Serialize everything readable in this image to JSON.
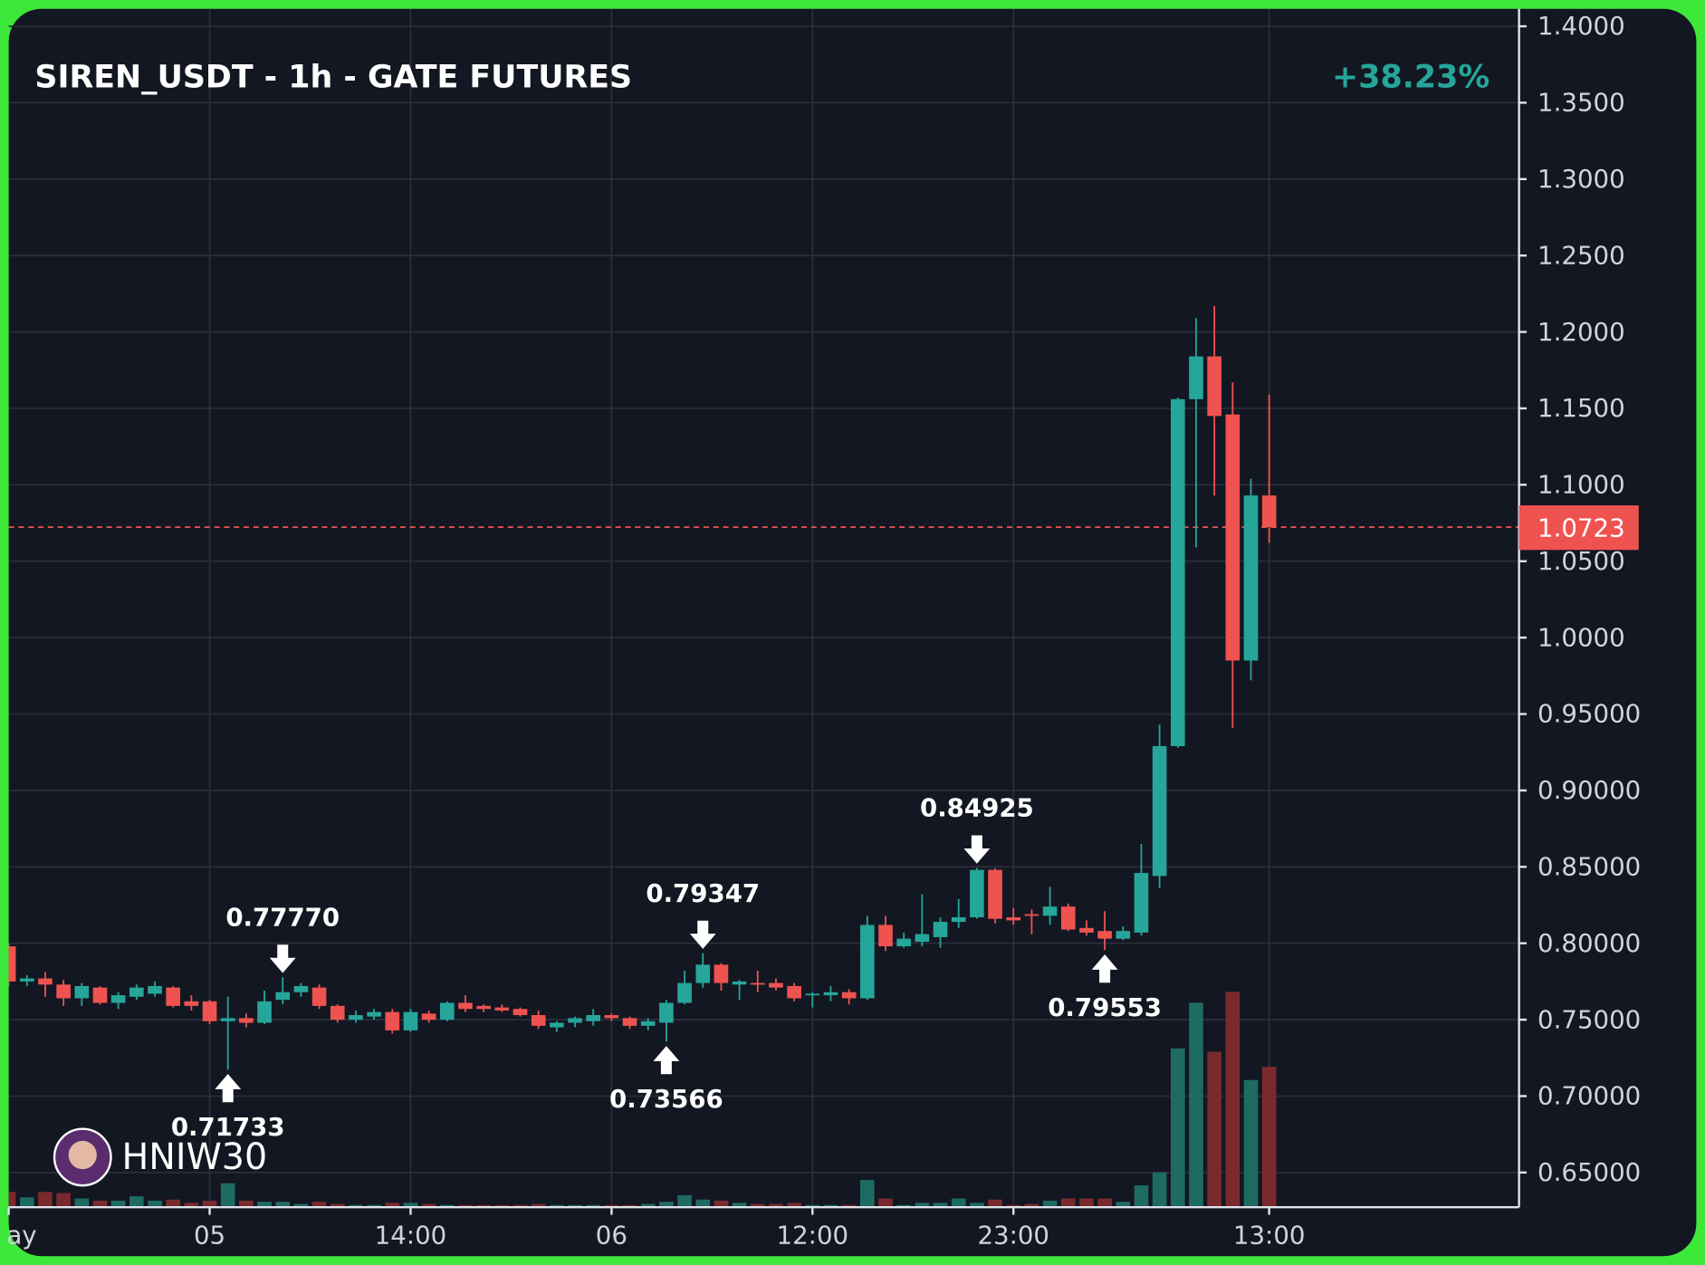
{
  "chart_data": {
    "type": "candlestick",
    "title": "SIREN_USDT - 1h - GATE FUTURES",
    "change": "+38.23%",
    "watermark": "HNIW30",
    "up_color": "#26a69a",
    "down_color": "#ef5350",
    "up_volume_color": "#1e6b63",
    "down_volume_color": "#7a2a2d",
    "grid": true,
    "categories": [
      "ay",
      null,
      null,
      null,
      null,
      null,
      null,
      null,
      null,
      null,
      null,
      "05",
      null,
      null,
      null,
      null,
      null,
      null,
      null,
      null,
      null,
      null,
      "14:00",
      null,
      null,
      null,
      null,
      null,
      null,
      null,
      null,
      null,
      null,
      "06",
      null,
      null,
      null,
      null,
      null,
      null,
      null,
      null,
      null,
      null,
      "12:00",
      null,
      null,
      null,
      null,
      null,
      null,
      null,
      null,
      null,
      null,
      "23:00",
      null,
      null,
      null,
      null,
      null,
      null,
      null,
      null,
      null,
      null,
      null,
      null,
      null,
      "13:00"
    ],
    "open": [
      0.798,
      0.775,
      0.777,
      0.773,
      0.764,
      0.771,
      0.761,
      0.765,
      0.767,
      0.771,
      0.762,
      0.762,
      0.749,
      0.751,
      0.748,
      0.763,
      0.768,
      0.771,
      0.759,
      0.75,
      0.752,
      0.755,
      0.743,
      0.754,
      0.75,
      0.761,
      0.759,
      0.758,
      0.757,
      0.753,
      0.745,
      0.748,
      0.749,
      0.753,
      0.751,
      0.746,
      0.748,
      0.761,
      0.774,
      0.786,
      0.773,
      0.774,
      0.774,
      0.772,
      0.766,
      0.766,
      0.768,
      0.764,
      0.812,
      0.798,
      0.801,
      0.804,
      0.814,
      0.817,
      0.848,
      0.817,
      0.819,
      0.818,
      0.824,
      0.81,
      0.808,
      0.803,
      0.807,
      0.844,
      0.929,
      1.156,
      1.184,
      1.146,
      0.985,
      1.093
    ],
    "high": [
      0.8,
      0.779,
      0.781,
      0.776,
      0.774,
      0.772,
      0.768,
      0.773,
      0.775,
      0.772,
      0.766,
      0.763,
      0.765,
      0.754,
      0.769,
      0.7777,
      0.774,
      0.773,
      0.76,
      0.756,
      0.757,
      0.757,
      0.757,
      0.756,
      0.762,
      0.766,
      0.76,
      0.76,
      0.758,
      0.756,
      0.749,
      0.752,
      0.757,
      0.754,
      0.752,
      0.751,
      0.763,
      0.782,
      0.79347,
      0.787,
      0.776,
      0.782,
      0.777,
      0.774,
      0.768,
      0.772,
      0.77,
      0.818,
      0.818,
      0.807,
      0.832,
      0.817,
      0.829,
      0.84925,
      0.849,
      0.823,
      0.822,
      0.837,
      0.826,
      0.815,
      0.821,
      0.811,
      0.865,
      0.943,
      1.157,
      1.209,
      1.217,
      1.167,
      1.104,
      1.159
    ],
    "low": [
      0.772,
      0.772,
      0.765,
      0.759,
      0.759,
      0.76,
      0.757,
      0.763,
      0.765,
      0.758,
      0.756,
      0.747,
      0.71733,
      0.745,
      0.747,
      0.76,
      0.765,
      0.757,
      0.748,
      0.748,
      0.75,
      0.741,
      0.742,
      0.748,
      0.749,
      0.755,
      0.755,
      0.755,
      0.752,
      0.744,
      0.742,
      0.745,
      0.746,
      0.749,
      0.744,
      0.743,
      0.73566,
      0.76,
      0.771,
      0.769,
      0.763,
      0.768,
      0.769,
      0.762,
      0.758,
      0.762,
      0.76,
      0.763,
      0.795,
      0.797,
      0.798,
      0.797,
      0.81,
      0.816,
      0.813,
      0.812,
      0.806,
      0.812,
      0.808,
      0.805,
      0.79553,
      0.802,
      0.805,
      0.836,
      0.928,
      1.059,
      1.093,
      0.941,
      0.972,
      1.062
    ],
    "close": [
      0.775,
      0.777,
      0.773,
      0.764,
      0.772,
      0.761,
      0.766,
      0.771,
      0.772,
      0.759,
      0.759,
      0.749,
      0.751,
      0.748,
      0.762,
      0.768,
      0.772,
      0.759,
      0.75,
      0.753,
      0.755,
      0.743,
      0.755,
      0.75,
      0.761,
      0.757,
      0.757,
      0.756,
      0.753,
      0.746,
      0.748,
      0.751,
      0.753,
      0.751,
      0.746,
      0.749,
      0.761,
      0.774,
      0.786,
      0.774,
      0.775,
      0.773,
      0.771,
      0.764,
      0.767,
      0.768,
      0.764,
      0.812,
      0.798,
      0.803,
      0.806,
      0.814,
      0.817,
      0.848,
      0.816,
      0.815,
      0.818,
      0.824,
      0.809,
      0.807,
      0.803,
      0.808,
      0.846,
      0.929,
      1.156,
      1.184,
      1.145,
      0.985,
      1.093,
      1.0723
    ],
    "volume": [
      14,
      9,
      14,
      13,
      8,
      6,
      6,
      10,
      6,
      7,
      4,
      6,
      22,
      6,
      5,
      5,
      3,
      5,
      3,
      2,
      2,
      4,
      4,
      3,
      2,
      2,
      2,
      2,
      2,
      3,
      2,
      2,
      2,
      2,
      2,
      3,
      5,
      11,
      7,
      6,
      4,
      3,
      3,
      4,
      2,
      2,
      2,
      25,
      8,
      2,
      4,
      4,
      8,
      4,
      7,
      2,
      3,
      6,
      8,
      8,
      8,
      5,
      20,
      32,
      146,
      188,
      143,
      198,
      117,
      129
    ],
    "ylim": [
      0.6273,
      1.4114
    ],
    "yticks": [
      {
        "value": 1.4,
        "label": "1.4000"
      },
      {
        "value": 1.35,
        "label": "1.3500"
      },
      {
        "value": 1.3,
        "label": "1.3000"
      },
      {
        "value": 1.25,
        "label": "1.2500"
      },
      {
        "value": 1.2,
        "label": "1.2000"
      },
      {
        "value": 1.15,
        "label": "1.1500"
      },
      {
        "value": 1.1,
        "label": "1.1000"
      },
      {
        "value": 1.05,
        "label": "1.0500"
      },
      {
        "value": 1.0,
        "label": "1.0000"
      },
      {
        "value": 0.95,
        "label": "0.95000"
      },
      {
        "value": 0.9,
        "label": "0.90000"
      },
      {
        "value": 0.85,
        "label": "0.85000"
      },
      {
        "value": 0.8,
        "label": "0.80000"
      },
      {
        "value": 0.75,
        "label": "0.75000"
      },
      {
        "value": 0.7,
        "label": "0.70000"
      },
      {
        "value": 0.65,
        "label": "0.65000"
      }
    ],
    "annotations": [
      {
        "value": 0.7777,
        "label": "0.77770"
      },
      {
        "value": 0.71733,
        "label": "0.71733"
      },
      {
        "value": 0.79347,
        "label": "0.79347"
      },
      {
        "value": 0.73566,
        "label": "0.73566"
      },
      {
        "value": 0.84925,
        "label": "0.84925"
      },
      {
        "value": 0.79553,
        "label": "0.79553"
      }
    ]
  }
}
